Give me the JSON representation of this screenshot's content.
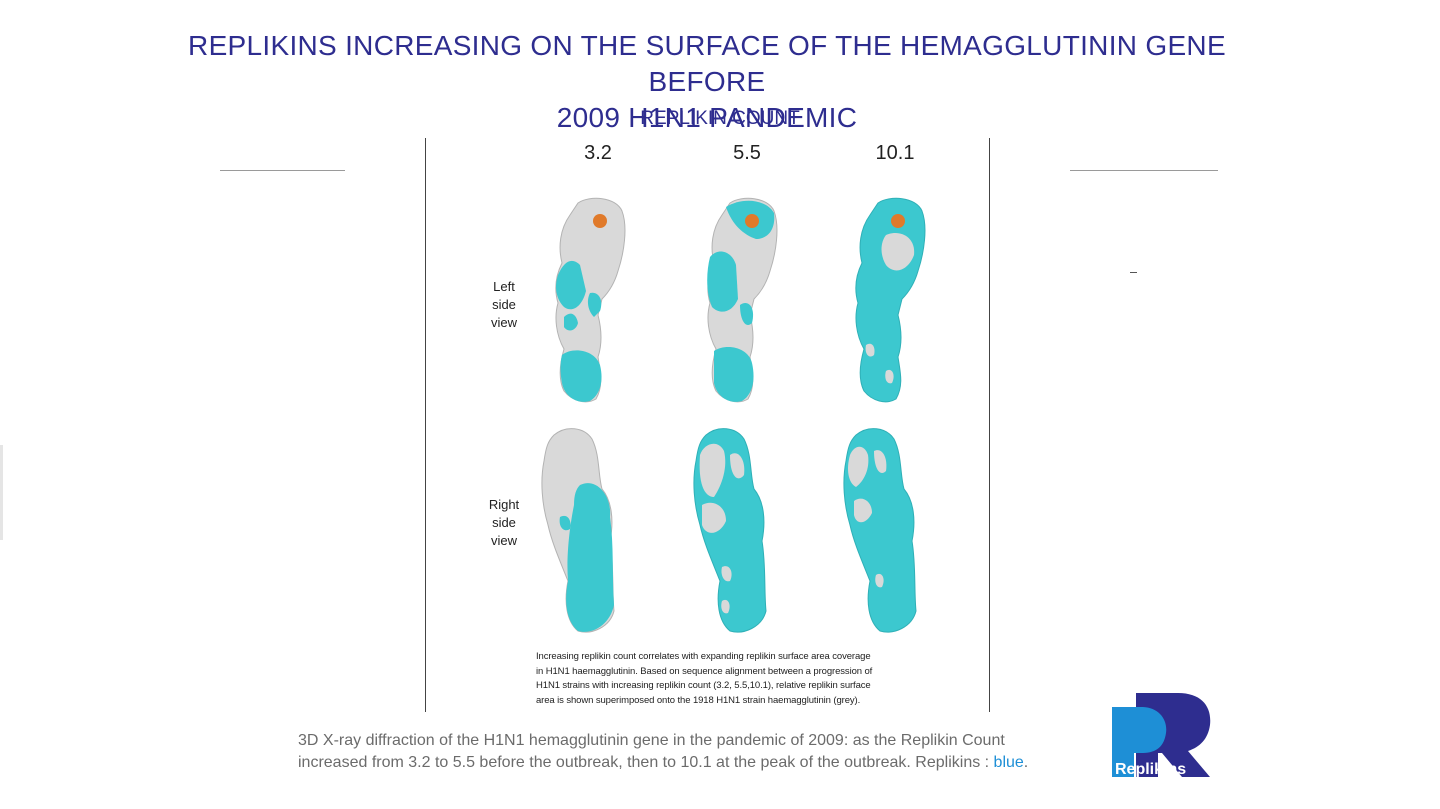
{
  "title": {
    "line1": "REPLIKINS INCREASING ON  THE SURFACE OF THE HEMAGGLUTININ GENE BEFORE",
    "line2": "2009 H1N1  PANDEMIC"
  },
  "subtitle": "REPLIKIN COUNT",
  "counts": [
    "3.2",
    "5.5",
    "10.1"
  ],
  "views": {
    "left": [
      "Left",
      "side",
      "view"
    ],
    "right": [
      "Right",
      "side",
      "view"
    ]
  },
  "caption": {
    "line1": "Increasing replikin count correlates with expanding replikin surface area coverage",
    "line2": "in H1N1 haemagglutinin. Based on sequence alignment between a progression of",
    "line3": "H1N1 strains with increasing replikin count (3.2, 5.5,10.1), relative replikin surface",
    "line4": "area is shown superimposed onto the 1918 H1N1 strain haemagglutinin (grey)."
  },
  "footer": {
    "line1": "3D X-ray diffraction of the H1N1 hemagglutinin gene in the pandemic of 2009: as the Replikin Count",
    "line2_prefix": "increased from 3.2 to 5.5  before the outbreak, then to 10.1 at the peak of the outbreak. Replikins : ",
    "highlight": "blue",
    "line2_suffix": "."
  },
  "logo_text": "Replikins",
  "colors": {
    "title": "#2e2d8f",
    "replikin": "#3cc8cf",
    "protein": "#d9d9d9",
    "site": "#e07a2a",
    "logo_light": "#1e8fd6",
    "logo_dark": "#2e2d8f"
  },
  "icons": {
    "molecule": "protein-surface-icon",
    "logo": "replikins-logo"
  }
}
